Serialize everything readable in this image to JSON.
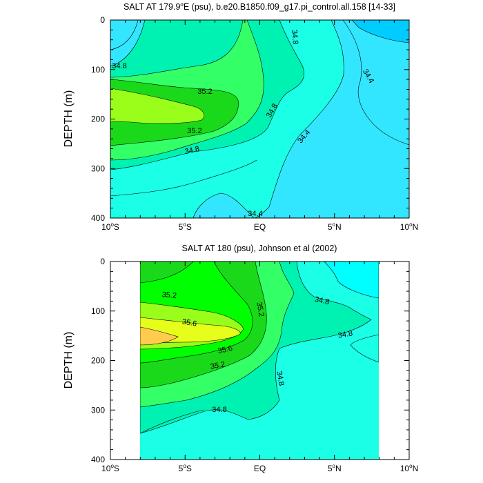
{
  "chart_data": [
    {
      "type": "contour",
      "title_main": "SALT AT 179.9",
      "title_deg": "o",
      "title_rest": "E (psu), b.e20.B1850.f09_g17.pi_control.all.158 [14-33]",
      "ylabel": "DEPTH (m)",
      "xlabel": "",
      "x_ticks": [
        "10°S",
        "5°S",
        "EQ",
        "5°N",
        "10°N"
      ],
      "x_tick_values": [
        -10,
        -5,
        0,
        5,
        10
      ],
      "y_ticks": [
        "0",
        "100",
        "200",
        "300",
        "400"
      ],
      "y_tick_values": [
        0,
        100,
        200,
        300,
        400
      ],
      "xlim": [
        -10,
        10
      ],
      "ylim": [
        400,
        0
      ],
      "contour_interval": 0.2,
      "contour_labels": [
        {
          "text": "34.8",
          "lat": -9.4,
          "depth": 95
        },
        {
          "text": "34.8",
          "lat": 2.2,
          "depth": 35
        },
        {
          "text": "34.4",
          "lat": 6.8,
          "depth": 115
        },
        {
          "text": "35.2",
          "lat": -6.2,
          "depth": 143
        },
        {
          "text": "35.2",
          "lat": -7.1,
          "depth": 221
        },
        {
          "text": "34.8",
          "lat": 0.9,
          "depth": 183
        },
        {
          "text": "34.8",
          "lat": -8.0,
          "depth": 261
        },
        {
          "text": "34.4",
          "lat": 3.1,
          "depth": 240
        },
        {
          "text": "34.4",
          "lat": -0.2,
          "depth": 384
        }
      ]
    },
    {
      "type": "contour",
      "title": "SALT AT 180 (psu), Johnson et al (2002)",
      "ylabel": "DEPTH (m)",
      "xlabel": "",
      "x_ticks": [
        "10°S",
        "5°S",
        "EQ",
        "5°N",
        "10°N"
      ],
      "x_tick_values": [
        -10,
        -5,
        0,
        5,
        10
      ],
      "y_ticks": [
        "0",
        "100",
        "200",
        "300",
        "400"
      ],
      "y_tick_values": [
        0,
        100,
        200,
        300,
        400
      ],
      "xlim": [
        -10,
        10
      ],
      "ylim": [
        400,
        0
      ],
      "data_lat_range": [
        -8,
        8
      ],
      "contour_interval": 0.2,
      "contour_labels": [
        {
          "text": "35.2",
          "lat": -6.3,
          "depth": 66
        },
        {
          "text": "35.2",
          "lat": 0.1,
          "depth": 97
        },
        {
          "text": "34.8",
          "lat": 4.2,
          "depth": 77
        },
        {
          "text": "35.6",
          "lat": -5.1,
          "depth": 128
        },
        {
          "text": "34.8",
          "lat": 5.8,
          "depth": 146
        },
        {
          "text": "35.6",
          "lat": -2.5,
          "depth": 183
        },
        {
          "text": "35.2",
          "lat": -3.2,
          "depth": 215
        },
        {
          "text": "34.8",
          "lat": 1.1,
          "depth": 240
        },
        {
          "text": "34.8",
          "lat": -2.6,
          "depth": 299
        }
      ]
    }
  ]
}
